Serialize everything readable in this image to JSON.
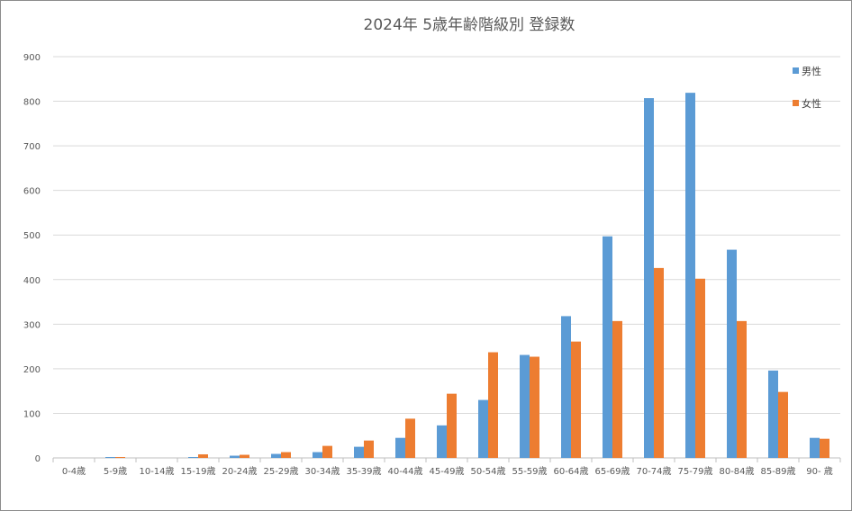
{
  "chart_data": {
    "type": "bar",
    "title": "2024年 5歳年齢階級別 登録数",
    "categories": [
      "0-4歳",
      "5-9歳",
      "10-14歳",
      "15-19歳",
      "20-24歳",
      "25-29歳",
      "30-34歳",
      "35-39歳",
      "40-44歳",
      "45-49歳",
      "50-54歳",
      "55-59歳",
      "60-64歳",
      "65-69歳",
      "70-74歳",
      "75-79歳",
      "80-84歳",
      "85-89歳",
      "90- 歳"
    ],
    "series": [
      {
        "name": "男性",
        "color": "#5b9bd5",
        "values": [
          0,
          2,
          0,
          2,
          5,
          9,
          13,
          25,
          45,
          73,
          130,
          231,
          318,
          497,
          807,
          819,
          467,
          196,
          45
        ]
      },
      {
        "name": "女性",
        "color": "#ed7d31",
        "values": [
          0,
          2,
          0,
          8,
          7,
          13,
          27,
          39,
          88,
          144,
          237,
          227,
          261,
          307,
          426,
          402,
          307,
          148,
          43
        ]
      }
    ],
    "yticks": [
      0,
      100,
      200,
      300,
      400,
      500,
      600,
      700,
      800,
      900
    ],
    "ylim": [
      0,
      900
    ],
    "grid": true,
    "legend": "top-right",
    "xlabel": "",
    "ylabel": ""
  }
}
